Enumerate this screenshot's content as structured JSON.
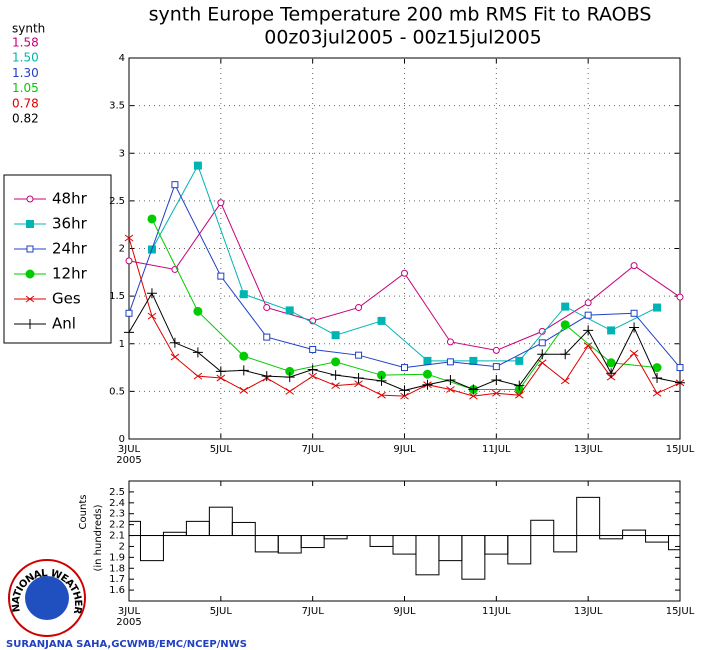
{
  "chart_data": [
    {
      "type": "line",
      "title": "synth Europe Temperature 200 mb RMS Fit to RAOBS",
      "subtitle": "00z03jul2005 - 00z15jul2005",
      "summary_title": "synth",
      "xlim": [
        3,
        15
      ],
      "xticks": [
        {
          "value": 3,
          "label": "3JUL"
        },
        {
          "value": 5,
          "label": "5JUL"
        },
        {
          "value": 7,
          "label": "7JUL"
        },
        {
          "value": 9,
          "label": "9JUL"
        },
        {
          "value": 11,
          "label": "11JUL"
        },
        {
          "value": 13,
          "label": "13JUL"
        },
        {
          "value": 15,
          "label": "15JUL"
        }
      ],
      "x_sublabel": "2005",
      "ylim": [
        0,
        4
      ],
      "yticks": [
        0,
        0.5,
        1,
        1.5,
        2,
        2.5,
        3,
        3.5,
        4
      ],
      "grid": true,
      "series": [
        {
          "name": "48hr",
          "summary": "1.58",
          "color": "#c8007a",
          "marker": "open-circle",
          "x": [
            3,
            4,
            5,
            6,
            7,
            8,
            9,
            10,
            11,
            12,
            13,
            14,
            15
          ],
          "values": [
            1.87,
            1.78,
            2.48,
            1.38,
            1.24,
            1.38,
            1.74,
            1.02,
            0.93,
            1.13,
            1.43,
            1.82,
            1.49
          ]
        },
        {
          "name": "36hr",
          "summary": "1.50",
          "color": "#00b4b4",
          "marker": "filled-square",
          "x": [
            3.5,
            4.5,
            5.5,
            6.5,
            7.5,
            8.5,
            9.5,
            10.5,
            11.5,
            12.5,
            13.5,
            14.5
          ],
          "values": [
            1.99,
            2.87,
            1.52,
            1.35,
            1.09,
            1.24,
            0.82,
            0.82,
            0.82,
            1.39,
            1.14,
            1.38
          ]
        },
        {
          "name": "24hr",
          "summary": "1.30",
          "color": "#2040c8",
          "marker": "open-square",
          "x": [
            3,
            4,
            5,
            6,
            7,
            8,
            9,
            10,
            11,
            12,
            13,
            14,
            15
          ],
          "values": [
            1.32,
            2.67,
            1.71,
            1.07,
            0.94,
            0.88,
            0.75,
            0.81,
            0.76,
            1.01,
            1.3,
            1.32,
            0.75
          ]
        },
        {
          "name": "12hr",
          "summary": "1.05",
          "color": "#00cc00",
          "marker": "filled-circle",
          "x": [
            3.5,
            4.5,
            5.5,
            6.5,
            7.5,
            8.5,
            9.5,
            10.5,
            11.5,
            12.5,
            13.5,
            14.5
          ],
          "values": [
            2.31,
            1.34,
            0.87,
            0.71,
            0.81,
            0.67,
            0.68,
            0.52,
            0.52,
            1.2,
            0.8,
            0.75
          ]
        },
        {
          "name": "Ges",
          "summary": "0.78",
          "color": "#e00000",
          "marker": "x",
          "x": [
            3,
            3.5,
            4,
            4.5,
            5,
            5.5,
            6,
            6.5,
            7,
            7.5,
            8,
            8.5,
            9,
            9.5,
            10,
            10.5,
            11,
            11.5,
            12,
            12.5,
            13,
            13.5,
            14,
            14.5,
            15
          ],
          "values": [
            2.11,
            1.29,
            0.86,
            0.66,
            0.64,
            0.51,
            0.64,
            0.5,
            0.66,
            0.56,
            0.58,
            0.46,
            0.45,
            0.57,
            0.52,
            0.45,
            0.48,
            0.46,
            0.8,
            0.61,
            0.98,
            0.65,
            0.9,
            0.48,
            0.59
          ]
        },
        {
          "name": "Anl",
          "summary": "0.82",
          "color": "#000000",
          "marker": "plus",
          "x": [
            3,
            3.5,
            4,
            4.5,
            5,
            5.5,
            6,
            6.5,
            7,
            7.5,
            8,
            8.5,
            9,
            9.5,
            10,
            10.5,
            11,
            11.5,
            12,
            12.5,
            13,
            13.5,
            14,
            14.5,
            15
          ],
          "values": [
            1.12,
            1.53,
            1.01,
            0.91,
            0.71,
            0.72,
            0.66,
            0.65,
            0.73,
            0.67,
            0.64,
            0.61,
            0.51,
            0.57,
            0.62,
            0.52,
            0.62,
            0.56,
            0.89,
            0.89,
            1.14,
            0.69,
            1.17,
            0.64,
            0.59
          ]
        }
      ]
    },
    {
      "type": "step",
      "ylabel": "Counts",
      "ylabel2": "(in hundreds)",
      "xlim": [
        3,
        15
      ],
      "xticks": [
        {
          "value": 3,
          "label": "3JUL"
        },
        {
          "value": 5,
          "label": "5JUL"
        },
        {
          "value": 7,
          "label": "7JUL"
        },
        {
          "value": 9,
          "label": "9JUL"
        },
        {
          "value": 11,
          "label": "11JUL"
        },
        {
          "value": 13,
          "label": "13JUL"
        },
        {
          "value": 15,
          "label": "15JUL"
        }
      ],
      "x_sublabel": "2005",
      "ylim": [
        1.5,
        2.6
      ],
      "yticks": [
        1.6,
        1.7,
        1.8,
        1.9,
        2,
        2.1,
        2.2,
        2.3,
        2.4,
        2.5
      ],
      "baseline": 2.1,
      "color": "#000000",
      "x": [
        3,
        3.5,
        4,
        4.5,
        5,
        5.5,
        6,
        6.5,
        7,
        7.5,
        8,
        8.5,
        9,
        9.5,
        10,
        10.5,
        11,
        11.5,
        12,
        12.5,
        13,
        13.5,
        14,
        14.5,
        15
      ],
      "values": [
        2.23,
        1.87,
        2.13,
        2.23,
        2.36,
        2.22,
        1.95,
        1.94,
        1.99,
        2.07,
        2.1,
        2.0,
        1.93,
        1.74,
        1.87,
        1.7,
        1.93,
        1.84,
        2.24,
        1.95,
        2.45,
        2.07,
        2.15,
        2.04,
        1.97
      ]
    }
  ],
  "logo_text": "NATIONAL WEATHER SERVICE",
  "credit": "SURANJANA SAHA,GCWMB/EMC/NCEP/NWS"
}
